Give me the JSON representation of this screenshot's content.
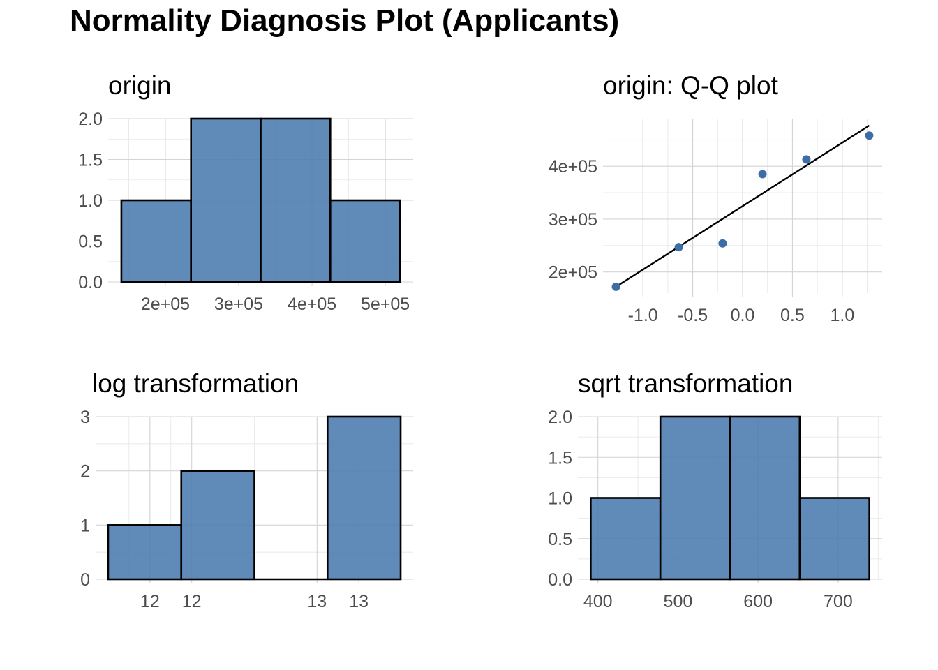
{
  "figure_title": "Normality Diagnosis Plot (Applicants)",
  "colors": {
    "bar_fill": "#4a7aae",
    "bar_border": "#000000",
    "point": "#3d6da5",
    "line": "#000000",
    "grid": "#d4d4d4"
  },
  "chart_data": [
    {
      "id": "origin",
      "type": "bar",
      "title": "origin",
      "bins": [
        {
          "from": 140000,
          "to": 235000,
          "count": 1
        },
        {
          "from": 235000,
          "to": 330000,
          "count": 2
        },
        {
          "from": 330000,
          "to": 425000,
          "count": 2
        },
        {
          "from": 425000,
          "to": 520000,
          "count": 1
        }
      ],
      "xlim": [
        122000,
        538000
      ],
      "ylim": [
        0,
        2
      ],
      "xticks": [
        {
          "v": 200000,
          "label": "2e+05"
        },
        {
          "v": 300000,
          "label": "3e+05"
        },
        {
          "v": 400000,
          "label": "4e+05"
        },
        {
          "v": 500000,
          "label": "5e+05"
        }
      ],
      "yticks": [
        {
          "v": 0,
          "label": "0.0"
        },
        {
          "v": 0.5,
          "label": "0.5"
        },
        {
          "v": 1,
          "label": "1.0"
        },
        {
          "v": 1.5,
          "label": "1.5"
        },
        {
          "v": 2,
          "label": "2.0"
        }
      ],
      "grid": true
    },
    {
      "id": "qq",
      "type": "scatter",
      "title": "origin: Q-Q plot",
      "points": [
        {
          "x": -1.27,
          "y": 172000
        },
        {
          "x": -0.64,
          "y": 247000
        },
        {
          "x": -0.2,
          "y": 254000
        },
        {
          "x": 0.2,
          "y": 385000
        },
        {
          "x": 0.64,
          "y": 413000
        },
        {
          "x": 1.27,
          "y": 458000
        }
      ],
      "line": [
        {
          "x": -1.27,
          "y": 172000
        },
        {
          "x": 1.27,
          "y": 477000
        }
      ],
      "xlim": [
        -1.4,
        1.4
      ],
      "ylim": [
        160000,
        490000
      ],
      "xticks": [
        {
          "v": -1,
          "label": "-1.0"
        },
        {
          "v": -0.5,
          "label": "-0.5"
        },
        {
          "v": 0,
          "label": "0.0"
        },
        {
          "v": 0.5,
          "label": "0.5"
        },
        {
          "v": 1,
          "label": "1.0"
        }
      ],
      "yticks": [
        {
          "v": 200000,
          "label": "2e+05"
        },
        {
          "v": 300000,
          "label": "3e+05"
        },
        {
          "v": 400000,
          "label": "4e+05"
        }
      ],
      "grid": true
    },
    {
      "id": "log",
      "type": "bar",
      "title": "log transformation",
      "bins": [
        {
          "from": 11.9,
          "to": 12.25,
          "count": 1
        },
        {
          "from": 12.25,
          "to": 12.6,
          "count": 2
        },
        {
          "from": 12.6,
          "to": 12.95,
          "count": 0
        },
        {
          "from": 12.95,
          "to": 13.3,
          "count": 3
        }
      ],
      "xlim": [
        11.84,
        13.36
      ],
      "ylim": [
        0,
        3
      ],
      "xticks": [
        {
          "v": 12.1,
          "label": "12"
        },
        {
          "v": 12.3,
          "label": "12"
        },
        {
          "v": 12.9,
          "label": "13"
        },
        {
          "v": 13.1,
          "label": "13"
        }
      ],
      "yticks": [
        {
          "v": 0,
          "label": "0"
        },
        {
          "v": 1,
          "label": "1"
        },
        {
          "v": 2,
          "label": "2"
        },
        {
          "v": 3,
          "label": "3"
        }
      ],
      "grid": true
    },
    {
      "id": "sqrt",
      "type": "bar",
      "title": "sqrt transformation",
      "bins": [
        {
          "from": 391,
          "to": 478,
          "count": 1
        },
        {
          "from": 478,
          "to": 565,
          "count": 2
        },
        {
          "from": 565,
          "to": 652,
          "count": 2
        },
        {
          "from": 652,
          "to": 739,
          "count": 1
        }
      ],
      "xlim": [
        375,
        755
      ],
      "ylim": [
        0,
        2
      ],
      "xticks": [
        {
          "v": 400,
          "label": "400"
        },
        {
          "v": 500,
          "label": "500"
        },
        {
          "v": 600,
          "label": "600"
        },
        {
          "v": 700,
          "label": "700"
        }
      ],
      "yticks": [
        {
          "v": 0,
          "label": "0.0"
        },
        {
          "v": 0.5,
          "label": "0.5"
        },
        {
          "v": 1,
          "label": "1.0"
        },
        {
          "v": 1.5,
          "label": "1.5"
        },
        {
          "v": 2,
          "label": "2.0"
        }
      ],
      "grid": true
    }
  ]
}
